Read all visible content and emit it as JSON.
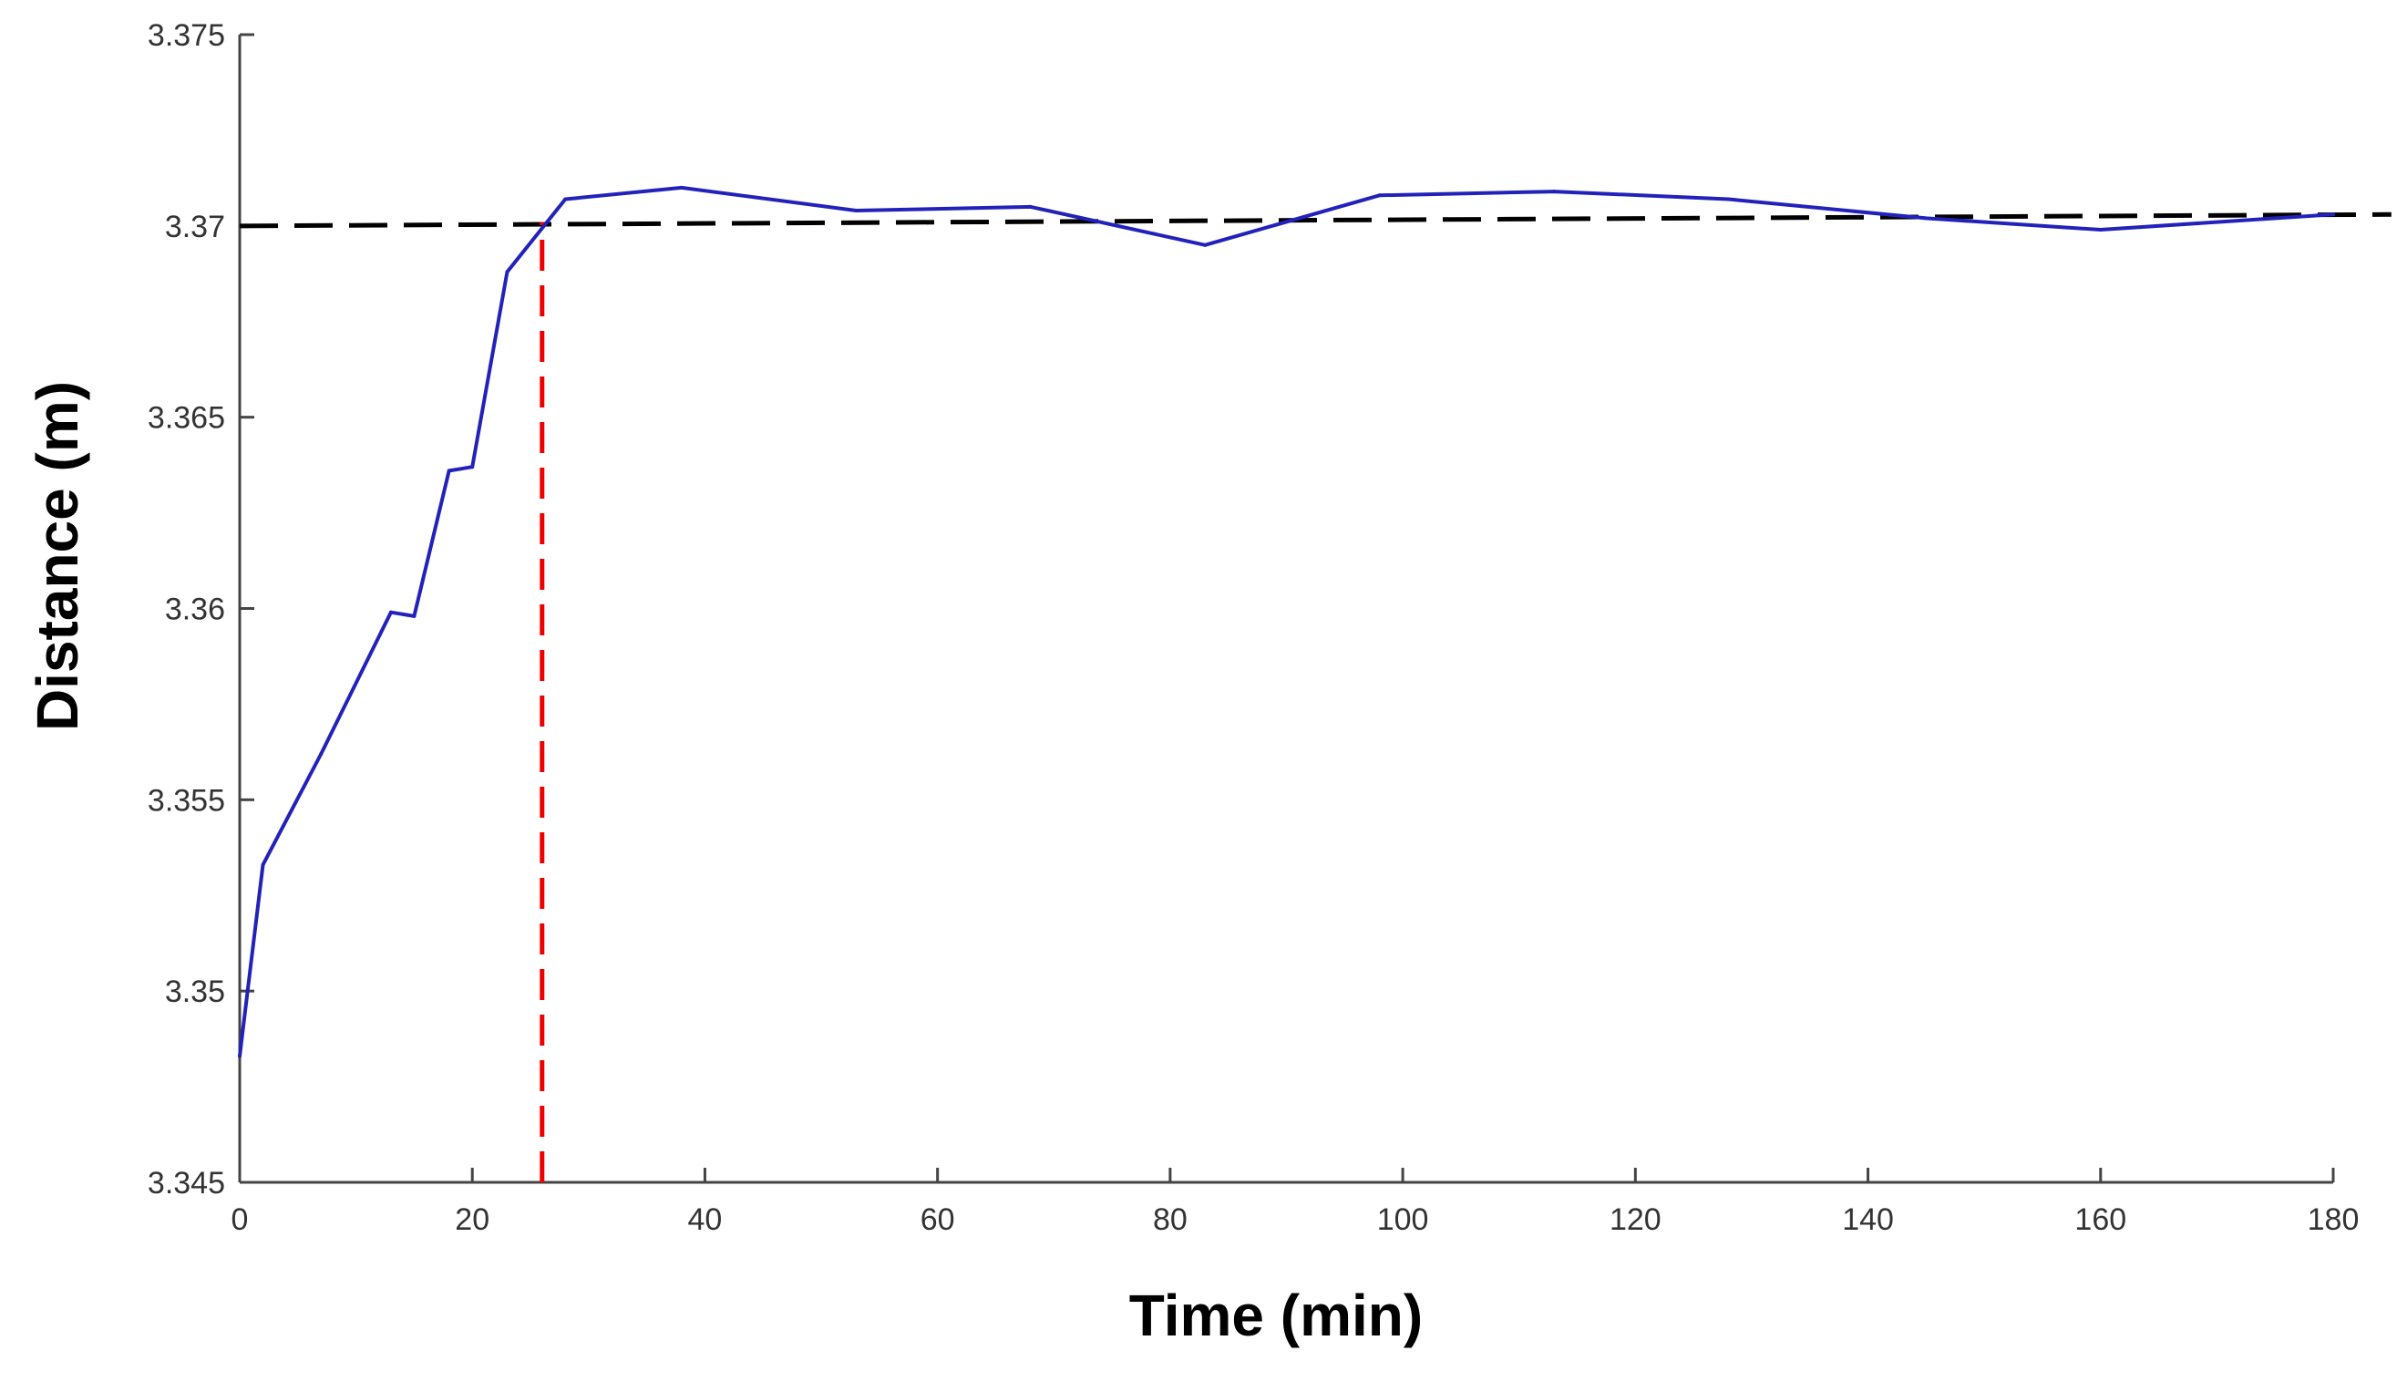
{
  "chart_data": {
    "type": "line",
    "title": "",
    "xlabel": "Time (min)",
    "ylabel": "Distance (m)",
    "xlim": [
      0,
      180
    ],
    "ylim": [
      3.345,
      3.375
    ],
    "xticks": [
      0,
      20,
      40,
      60,
      80,
      100,
      120,
      140,
      160,
      180
    ],
    "yticks": [
      3.345,
      3.35,
      3.355,
      3.36,
      3.365,
      3.37,
      3.375
    ],
    "xtick_labels": [
      "0",
      "20",
      "40",
      "60",
      "80",
      "100",
      "120",
      "140",
      "160",
      "180"
    ],
    "ytick_labels": [
      "3.345",
      "3.35",
      "3.355",
      "3.36",
      "3.365",
      "3.37",
      "3.375"
    ],
    "grid": false,
    "series": [
      {
        "name": "Distance",
        "color": "#2222bb",
        "style": "solid",
        "x": [
          0,
          2,
          7,
          13,
          15,
          18,
          20,
          23,
          28,
          38,
          53,
          68,
          83,
          98,
          113,
          128,
          145,
          160,
          180
        ],
        "y": [
          3.3483,
          3.3533,
          3.3562,
          3.3599,
          3.3598,
          3.3636,
          3.3637,
          3.3688,
          3.3707,
          3.371,
          3.3704,
          3.3705,
          3.3695,
          3.3708,
          3.3709,
          3.3707,
          3.3702,
          3.3699,
          3.3703
        ]
      }
    ],
    "annotations": [
      {
        "type": "hline",
        "name": "steady-state-reference",
        "x": [
          0,
          185
        ],
        "y": [
          3.37,
          3.3703
        ],
        "color": "#000000",
        "style": "dashed"
      },
      {
        "type": "vline",
        "name": "settling-time-marker",
        "x": 26,
        "y": [
          3.345,
          3.3701
        ],
        "color": "#ee0000",
        "style": "dashed"
      }
    ]
  }
}
